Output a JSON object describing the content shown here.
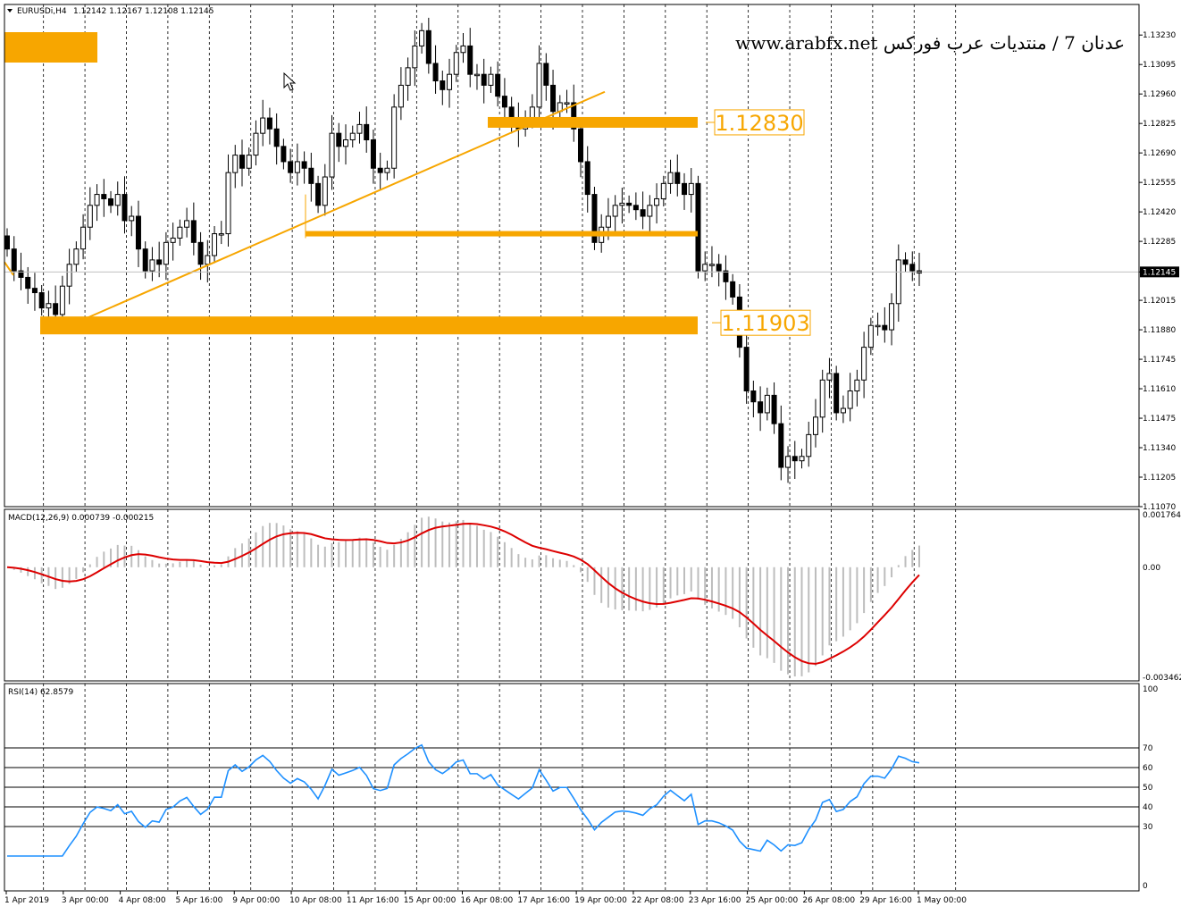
{
  "header": {
    "symbol": "EURUSDi,H4",
    "ohlc": "1.12142 1.12167 1.12108 1.12145"
  },
  "watermark": "www.arabfx.net  عدنان 7 / منتديات عرب فوركس",
  "colors": {
    "bull_body": "#ffffff",
    "bear_body": "#000000",
    "wick": "#000000",
    "level_zone": "#f7a600",
    "trendline": "#f7a600",
    "macd_signal": "#dd0000",
    "macd_hist": "#bdbdbd",
    "rsi_line": "#1e90ff",
    "grid": "#000000"
  },
  "icons": {
    "cursor": "mouse-pointer-icon",
    "dropdown": "triangle-down-icon"
  },
  "chart_data": [
    {
      "type": "candlestick",
      "title": "EURUSDi,H4",
      "ylim": [
        1.1107,
        1.1337
      ],
      "y_ticks": [
        "1.13230",
        "1.13095",
        "1.12960",
        "1.12825",
        "1.12690",
        "1.12555",
        "1.12420",
        "1.12285",
        "1.12145",
        "1.12015",
        "1.11880",
        "1.11745",
        "1.11610",
        "1.11475",
        "1.11340",
        "1.11205",
        "1.11070"
      ],
      "current_price": "1.12145",
      "x_labels": [
        "1 Apr 2019",
        "3 Apr 00:00",
        "4 Apr 08:00",
        "5 Apr 16:00",
        "9 Apr 00:00",
        "10 Apr 08:00",
        "11 Apr 16:00",
        "15 Apr 00:00",
        "16 Apr 08:00",
        "17 Apr 16:00",
        "19 Apr 00:00",
        "22 Apr 08:00",
        "23 Apr 16:00",
        "25 Apr 00:00",
        "26 Apr 08:00",
        "29 Apr 16:00",
        "1 May 00:00"
      ],
      "closes": [
        1.1225,
        1.1215,
        1.1212,
        1.1207,
        1.1205,
        1.1198,
        1.12,
        1.1195,
        1.1208,
        1.1218,
        1.1225,
        1.1235,
        1.1245,
        1.125,
        1.1248,
        1.1245,
        1.125,
        1.1238,
        1.124,
        1.1225,
        1.1215,
        1.122,
        1.1218,
        1.1228,
        1.123,
        1.1235,
        1.1238,
        1.1228,
        1.1218,
        1.1222,
        1.1232,
        1.1232,
        1.126,
        1.1268,
        1.1262,
        1.1268,
        1.1278,
        1.1285,
        1.128,
        1.1272,
        1.1265,
        1.126,
        1.1265,
        1.1262,
        1.1255,
        1.1245,
        1.1258,
        1.1278,
        1.1272,
        1.1275,
        1.1278,
        1.1282,
        1.1275,
        1.1262,
        1.126,
        1.1262,
        1.129,
        1.13,
        1.1308,
        1.1318,
        1.1325,
        1.131,
        1.1302,
        1.1298,
        1.1305,
        1.1315,
        1.1318,
        1.1305,
        1.1305,
        1.13,
        1.1305,
        1.1295,
        1.129,
        1.1285,
        1.128,
        1.1285,
        1.129,
        1.131,
        1.13,
        1.1288,
        1.1292,
        1.1292,
        1.128,
        1.1265,
        1.125,
        1.1228,
        1.1235,
        1.124,
        1.1245,
        1.1246,
        1.1245,
        1.1243,
        1.124,
        1.1245,
        1.1248,
        1.1255,
        1.126,
        1.1255,
        1.125,
        1.1255,
        1.1215,
        1.1218,
        1.1218,
        1.1215,
        1.121,
        1.1203,
        1.118,
        1.116,
        1.1155,
        1.115,
        1.1158,
        1.1145,
        1.1125,
        1.113,
        1.1128,
        1.113,
        1.114,
        1.1148,
        1.1165,
        1.1168,
        1.115,
        1.1152,
        1.116,
        1.1165,
        1.118,
        1.119,
        1.119,
        1.1188,
        1.12,
        1.122,
        1.1218,
        1.1215,
        1.1214
      ]
    },
    {
      "type": "bar+line",
      "title": "MACD(12,26,9) 0.000739 -0.000215",
      "ylim": [
        -0.003462,
        0.001764
      ],
      "y_ticks": [
        "0.001764",
        "0.00",
        "-0.003462"
      ]
    },
    {
      "type": "line",
      "title": "RSI(14) 62.8579",
      "ylim": [
        0,
        100
      ],
      "y_ticks": [
        "100",
        "70",
        "60",
        "50",
        "40",
        "30",
        "0"
      ],
      "levels": [
        70,
        60,
        50,
        40,
        30
      ]
    }
  ],
  "annotations": {
    "levels": [
      {
        "label": "1.12830",
        "value": 1.1283
      },
      {
        "label": "1.11903",
        "value": 1.119
      }
    ]
  }
}
